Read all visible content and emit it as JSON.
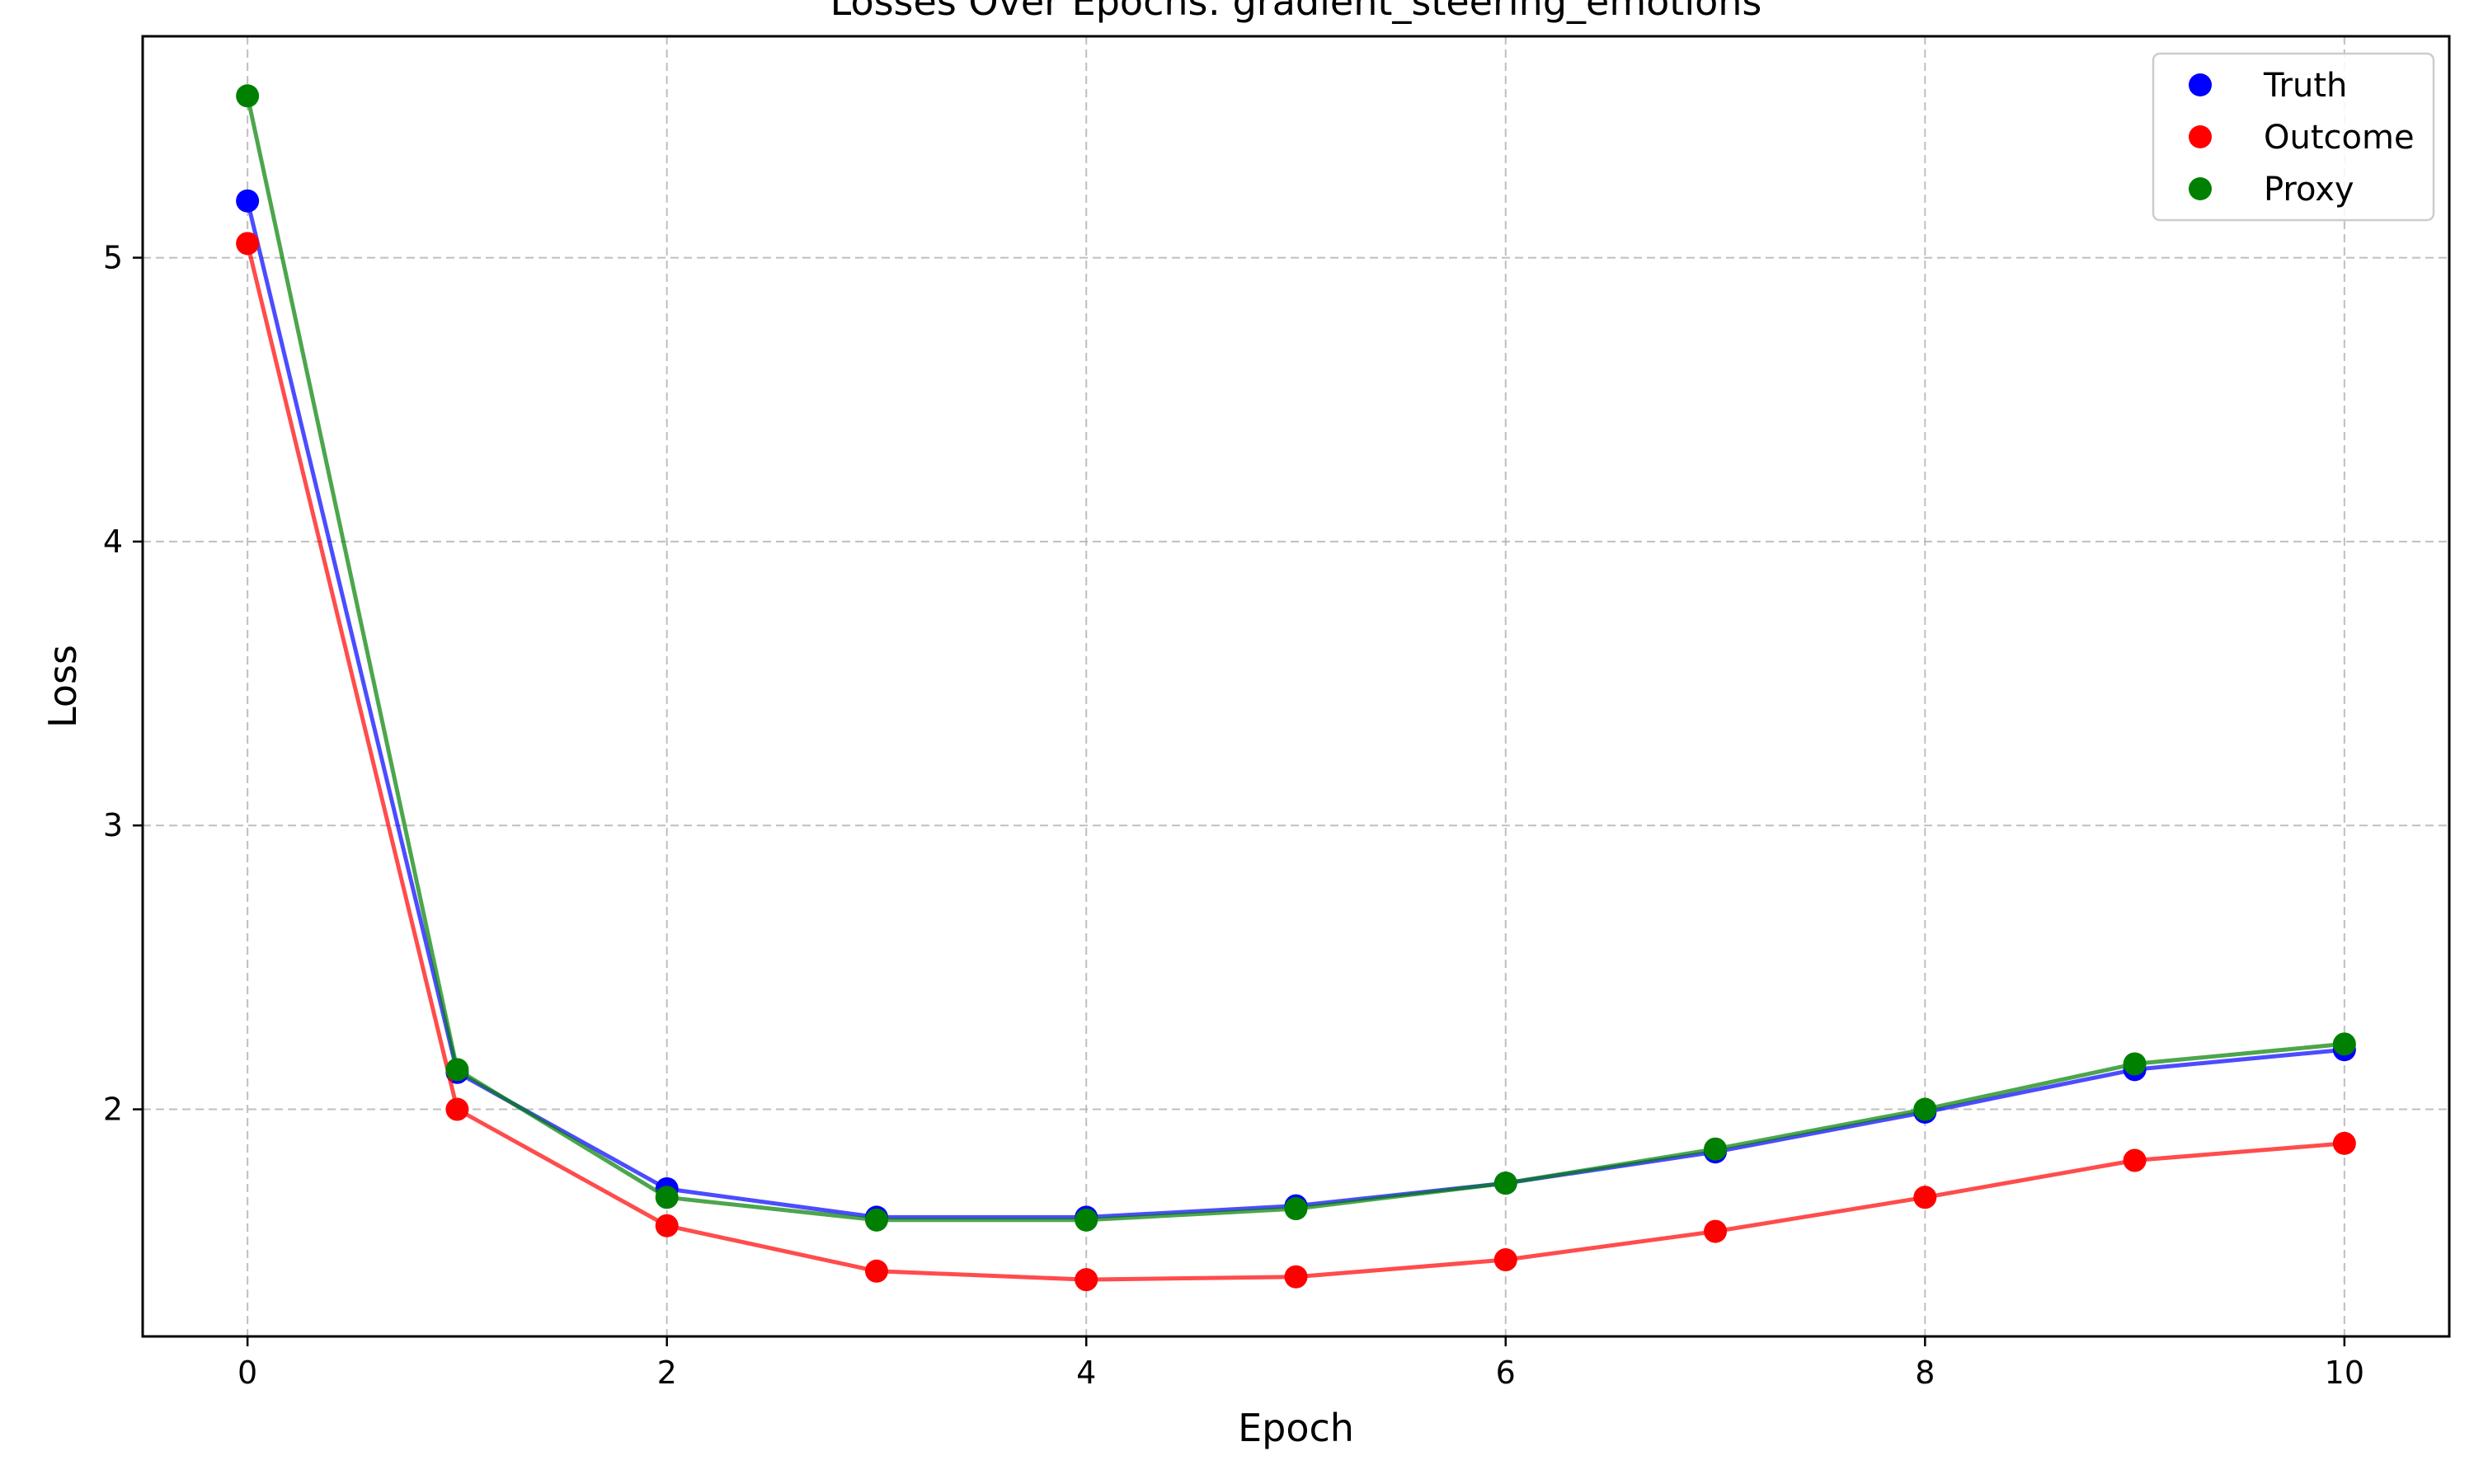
{
  "chart_data": {
    "type": "line",
    "title": "Losses Over Epochs: gradient_steering_emotions",
    "xlabel": "Epoch",
    "ylabel": "Loss",
    "xlim": [
      -0.5,
      10.5
    ],
    "ylim": [
      1.2,
      5.78
    ],
    "xticks": [
      0,
      2,
      4,
      6,
      8,
      10
    ],
    "yticks": [
      2,
      3,
      4,
      5
    ],
    "grid": true,
    "legend_position": "top-right",
    "x": [
      0,
      1,
      2,
      3,
      4,
      5,
      6,
      7,
      8,
      9,
      10
    ],
    "series": [
      {
        "name": "Truth",
        "color": "#0000ff",
        "values": [
          5.2,
          2.13,
          1.72,
          1.62,
          1.62,
          1.66,
          1.74,
          1.85,
          1.99,
          2.14,
          2.21
        ]
      },
      {
        "name": "Outcome",
        "color": "#ff0000",
        "values": [
          5.05,
          2.0,
          1.59,
          1.43,
          1.4,
          1.41,
          1.47,
          1.57,
          1.69,
          1.82,
          1.88
        ]
      },
      {
        "name": "Proxy",
        "color": "#008000",
        "values": [
          5.57,
          2.14,
          1.69,
          1.61,
          1.61,
          1.65,
          1.74,
          1.86,
          2.0,
          2.16,
          2.23
        ]
      }
    ]
  }
}
